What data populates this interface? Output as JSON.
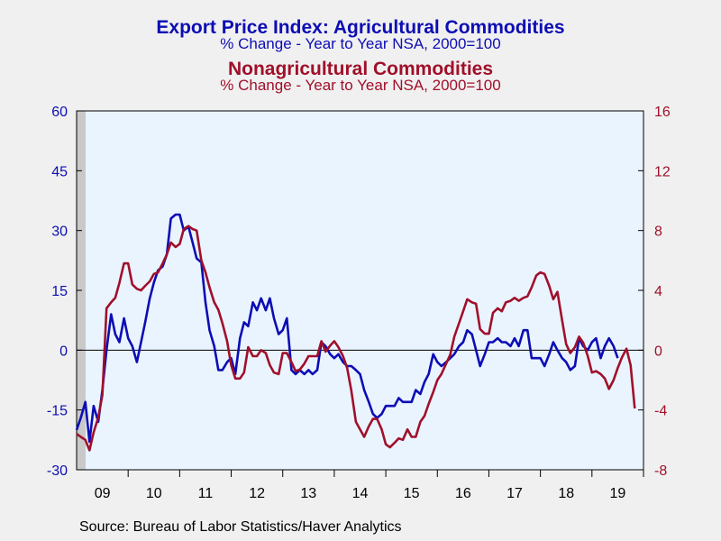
{
  "colors": {
    "agri": "#0d0db4",
    "nonagri": "#a0102a",
    "background": "#f0f0f0",
    "plot_bg": "#eaf4ff",
    "shading": "#c9c9c9"
  },
  "chart_data": {
    "type": "line",
    "titles": [
      {
        "text": "Export Price Index: Agricultural Commodities",
        "color": "agri",
        "weight": "bold"
      },
      {
        "text": "% Change - Year to Year    NSA, 2000=100",
        "color": "agri",
        "weight": "normal"
      },
      {
        "text": "Nonagricultural Commodities",
        "color": "nonagri",
        "weight": "bold"
      },
      {
        "text": "% Change - Year to Year    NSA, 2000=100",
        "color": "nonagri",
        "weight": "normal"
      }
    ],
    "x_range": [
      2009.0,
      2020.0
    ],
    "x_tick_labels": [
      "09",
      "10",
      "11",
      "12",
      "13",
      "14",
      "15",
      "16",
      "17",
      "18",
      "19"
    ],
    "y_left": {
      "range": [
        -30,
        60
      ],
      "ticks": [
        -30,
        -15,
        0,
        15,
        30,
        45,
        60
      ]
    },
    "y_right": {
      "range": [
        -8,
        16
      ],
      "ticks": [
        -8,
        -4,
        0,
        4,
        8,
        12,
        16
      ]
    },
    "zero_line": true,
    "recession_shading": [
      2009.0,
      2009.5
    ],
    "series": [
      {
        "axis": "left",
        "color": "agri",
        "points": [
          [
            2009.0,
            -20
          ],
          [
            2009.08,
            -17
          ],
          [
            2009.17,
            -13
          ],
          [
            2009.25,
            -23
          ],
          [
            2009.33,
            -14
          ],
          [
            2009.42,
            -18
          ],
          [
            2009.5,
            -10
          ],
          [
            2009.58,
            0
          ],
          [
            2009.67,
            9
          ],
          [
            2009.75,
            4
          ],
          [
            2009.83,
            2
          ],
          [
            2009.92,
            8
          ],
          [
            2010.0,
            3
          ],
          [
            2010.08,
            1
          ],
          [
            2010.17,
            -3
          ],
          [
            2010.25,
            2
          ],
          [
            2010.33,
            7
          ],
          [
            2010.42,
            13
          ],
          [
            2010.5,
            17
          ],
          [
            2010.58,
            20
          ],
          [
            2010.67,
            21
          ],
          [
            2010.75,
            24
          ],
          [
            2010.83,
            33
          ],
          [
            2010.92,
            34
          ],
          [
            2011.0,
            34
          ],
          [
            2011.08,
            30
          ],
          [
            2011.17,
            31
          ],
          [
            2011.25,
            27
          ],
          [
            2011.33,
            23
          ],
          [
            2011.42,
            22
          ],
          [
            2011.5,
            12
          ],
          [
            2011.58,
            5
          ],
          [
            2011.67,
            1
          ],
          [
            2011.75,
            -5
          ],
          [
            2011.83,
            -5
          ],
          [
            2011.92,
            -3
          ],
          [
            2012.0,
            -2
          ],
          [
            2012.08,
            -6
          ],
          [
            2012.17,
            3
          ],
          [
            2012.25,
            7
          ],
          [
            2012.33,
            6
          ],
          [
            2012.42,
            12
          ],
          [
            2012.5,
            10
          ],
          [
            2012.58,
            13
          ],
          [
            2012.67,
            10
          ],
          [
            2012.75,
            13
          ],
          [
            2012.83,
            8
          ],
          [
            2012.92,
            4
          ],
          [
            2013.0,
            5
          ],
          [
            2013.08,
            8
          ],
          [
            2013.17,
            -5
          ],
          [
            2013.25,
            -6
          ],
          [
            2013.33,
            -5
          ],
          [
            2013.42,
            -6
          ],
          [
            2013.5,
            -5
          ],
          [
            2013.58,
            -6
          ],
          [
            2013.67,
            -5
          ],
          [
            2013.75,
            2
          ],
          [
            2013.83,
            1
          ],
          [
            2013.92,
            -1
          ],
          [
            2014.0,
            -2
          ],
          [
            2014.08,
            -1
          ],
          [
            2014.17,
            -3
          ],
          [
            2014.25,
            -4
          ],
          [
            2014.33,
            -4
          ],
          [
            2014.42,
            -5
          ],
          [
            2014.5,
            -6
          ],
          [
            2014.58,
            -10
          ],
          [
            2014.67,
            -13
          ],
          [
            2014.75,
            -16
          ],
          [
            2014.83,
            -17
          ],
          [
            2014.92,
            -16
          ],
          [
            2015.0,
            -14
          ],
          [
            2015.08,
            -14
          ],
          [
            2015.17,
            -14
          ],
          [
            2015.25,
            -12
          ],
          [
            2015.33,
            -13
          ],
          [
            2015.42,
            -13
          ],
          [
            2015.5,
            -13
          ],
          [
            2015.58,
            -10
          ],
          [
            2015.67,
            -11
          ],
          [
            2015.75,
            -8
          ],
          [
            2015.83,
            -6
          ],
          [
            2015.92,
            -1
          ],
          [
            2016.0,
            -3
          ],
          [
            2016.08,
            -4
          ],
          [
            2016.17,
            -3
          ],
          [
            2016.25,
            -2
          ],
          [
            2016.33,
            -1
          ],
          [
            2016.42,
            1
          ],
          [
            2016.5,
            2
          ],
          [
            2016.58,
            5
          ],
          [
            2016.67,
            4
          ],
          [
            2016.75,
            0
          ],
          [
            2016.83,
            -4
          ],
          [
            2016.92,
            -1
          ],
          [
            2017.0,
            2
          ],
          [
            2017.08,
            2
          ],
          [
            2017.17,
            3
          ],
          [
            2017.25,
            2
          ],
          [
            2017.33,
            2
          ],
          [
            2017.42,
            1
          ],
          [
            2017.5,
            3
          ],
          [
            2017.58,
            1
          ],
          [
            2017.67,
            5
          ],
          [
            2017.75,
            5
          ],
          [
            2017.83,
            -2
          ],
          [
            2017.92,
            -2
          ],
          [
            2018.0,
            -2
          ],
          [
            2018.08,
            -4
          ],
          [
            2018.17,
            -1
          ],
          [
            2018.25,
            2
          ],
          [
            2018.33,
            0
          ],
          [
            2018.42,
            -2
          ],
          [
            2018.5,
            -3
          ],
          [
            2018.58,
            -5
          ],
          [
            2018.67,
            -4
          ],
          [
            2018.75,
            3
          ],
          [
            2018.83,
            1
          ],
          [
            2018.92,
            0
          ],
          [
            2019.0,
            2
          ],
          [
            2019.08,
            3
          ],
          [
            2019.17,
            -2
          ],
          [
            2019.25,
            1
          ],
          [
            2019.33,
            3
          ],
          [
            2019.42,
            1
          ],
          [
            2019.5,
            -2
          ]
        ]
      },
      {
        "axis": "right",
        "color": "nonagri",
        "points": [
          [
            2009.0,
            -5.6
          ],
          [
            2009.08,
            -5.8
          ],
          [
            2009.17,
            -6.0
          ],
          [
            2009.25,
            -6.7
          ],
          [
            2009.33,
            -5.5
          ],
          [
            2009.42,
            -4.5
          ],
          [
            2009.5,
            -3.0
          ],
          [
            2009.58,
            2.8
          ],
          [
            2009.67,
            3.2
          ],
          [
            2009.75,
            3.5
          ],
          [
            2009.83,
            4.5
          ],
          [
            2009.92,
            5.8
          ],
          [
            2010.0,
            5.8
          ],
          [
            2010.08,
            4.4
          ],
          [
            2010.17,
            4.1
          ],
          [
            2010.25,
            4.0
          ],
          [
            2010.33,
            4.3
          ],
          [
            2010.42,
            4.6
          ],
          [
            2010.5,
            5.1
          ],
          [
            2010.58,
            5.2
          ],
          [
            2010.67,
            5.8
          ],
          [
            2010.75,
            6.4
          ],
          [
            2010.83,
            7.2
          ],
          [
            2010.92,
            6.9
          ],
          [
            2011.0,
            7.1
          ],
          [
            2011.08,
            8.1
          ],
          [
            2011.17,
            8.3
          ],
          [
            2011.25,
            8.1
          ],
          [
            2011.33,
            8.0
          ],
          [
            2011.42,
            6.0
          ],
          [
            2011.5,
            5.2
          ],
          [
            2011.58,
            4.2
          ],
          [
            2011.67,
            3.2
          ],
          [
            2011.75,
            2.7
          ],
          [
            2011.83,
            1.8
          ],
          [
            2011.92,
            0.6
          ],
          [
            2012.0,
            -1.0
          ],
          [
            2012.08,
            -1.9
          ],
          [
            2012.17,
            -1.9
          ],
          [
            2012.25,
            -1.5
          ],
          [
            2012.33,
            0.2
          ],
          [
            2012.42,
            -0.4
          ],
          [
            2012.5,
            -0.4
          ],
          [
            2012.58,
            0.0
          ],
          [
            2012.67,
            -0.2
          ],
          [
            2012.75,
            -1.0
          ],
          [
            2012.83,
            -1.5
          ],
          [
            2012.92,
            -1.6
          ],
          [
            2013.0,
            -0.2
          ],
          [
            2013.08,
            -0.2
          ],
          [
            2013.17,
            -0.8
          ],
          [
            2013.25,
            -1.4
          ],
          [
            2013.33,
            -1.3
          ],
          [
            2013.42,
            -0.9
          ],
          [
            2013.5,
            -0.4
          ],
          [
            2013.58,
            -0.4
          ],
          [
            2013.67,
            -0.4
          ],
          [
            2013.75,
            0.6
          ],
          [
            2013.83,
            -0.1
          ],
          [
            2013.92,
            0.3
          ],
          [
            2014.0,
            0.6
          ],
          [
            2014.08,
            0.2
          ],
          [
            2014.17,
            -0.4
          ],
          [
            2014.25,
            -1.2
          ],
          [
            2014.33,
            -2.7
          ],
          [
            2014.42,
            -4.8
          ],
          [
            2014.5,
            -5.3
          ],
          [
            2014.58,
            -5.8
          ],
          [
            2014.67,
            -5.1
          ],
          [
            2014.75,
            -4.6
          ],
          [
            2014.83,
            -4.6
          ],
          [
            2014.92,
            -5.3
          ],
          [
            2015.0,
            -6.3
          ],
          [
            2015.08,
            -6.5
          ],
          [
            2015.17,
            -6.2
          ],
          [
            2015.25,
            -5.9
          ],
          [
            2015.33,
            -6.0
          ],
          [
            2015.42,
            -5.3
          ],
          [
            2015.5,
            -5.8
          ],
          [
            2015.58,
            -5.8
          ],
          [
            2015.67,
            -4.8
          ],
          [
            2015.75,
            -4.4
          ],
          [
            2015.83,
            -3.6
          ],
          [
            2015.92,
            -2.8
          ],
          [
            2016.0,
            -2.0
          ],
          [
            2016.08,
            -1.6
          ],
          [
            2016.17,
            -0.9
          ],
          [
            2016.25,
            -0.3
          ],
          [
            2016.33,
            0.9
          ],
          [
            2016.42,
            1.8
          ],
          [
            2016.5,
            2.6
          ],
          [
            2016.58,
            3.4
          ],
          [
            2016.67,
            3.2
          ],
          [
            2016.75,
            3.1
          ],
          [
            2016.83,
            1.4
          ],
          [
            2016.92,
            1.1
          ],
          [
            2017.0,
            1.1
          ],
          [
            2017.08,
            2.5
          ],
          [
            2017.17,
            2.8
          ],
          [
            2017.25,
            2.6
          ],
          [
            2017.33,
            3.2
          ],
          [
            2017.42,
            3.3
          ],
          [
            2017.5,
            3.5
          ],
          [
            2017.58,
            3.3
          ],
          [
            2017.67,
            3.5
          ],
          [
            2017.75,
            3.6
          ],
          [
            2017.83,
            4.2
          ],
          [
            2017.92,
            5.0
          ],
          [
            2018.0,
            5.2
          ],
          [
            2018.08,
            5.1
          ],
          [
            2018.17,
            4.3
          ],
          [
            2018.25,
            3.4
          ],
          [
            2018.33,
            3.9
          ],
          [
            2018.42,
            2.0
          ],
          [
            2018.5,
            0.4
          ],
          [
            2018.58,
            -0.2
          ],
          [
            2018.67,
            0.2
          ],
          [
            2018.75,
            0.9
          ],
          [
            2018.83,
            0.5
          ],
          [
            2018.92,
            -0.4
          ],
          [
            2019.0,
            -1.5
          ],
          [
            2019.08,
            -1.4
          ],
          [
            2019.17,
            -1.6
          ],
          [
            2019.25,
            -1.9
          ],
          [
            2019.33,
            -2.6
          ],
          [
            2019.42,
            -2.0
          ],
          [
            2019.5,
            -1.2
          ],
          [
            2019.58,
            -0.5
          ],
          [
            2019.67,
            0.1
          ],
          [
            2019.75,
            -1.0
          ],
          [
            2019.83,
            -3.9
          ]
        ]
      }
    ]
  },
  "source_text": "Source:  Bureau of Labor Statistics/Haver Analytics"
}
